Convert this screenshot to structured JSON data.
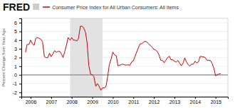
{
  "chart_data": {
    "type": "line",
    "title": "Consumer Price Index for All Urban Consumers: All Items",
    "ylabel": "Percent Change from Year Ago",
    "annotations": [
      {
        "text": "FRED"
      }
    ],
    "color": "#cc0000",
    "grid": true,
    "shade": {
      "start": 2007.92,
      "end": 2009.5
    },
    "reference_line": 0,
    "xlim": [
      2005.55,
      2015.6
    ],
    "ylim": [
      -2.5,
      6.5
    ],
    "xticks": [
      2006,
      2007,
      2008,
      2009,
      2010,
      2011,
      2012,
      2013,
      2014,
      2015
    ],
    "yticks": [
      -2,
      -1,
      0,
      1,
      2,
      3,
      4,
      5,
      6
    ],
    "x": [
      2005.75,
      2005.83,
      2005.92,
      2006.0,
      2006.08,
      2006.17,
      2006.25,
      2006.33,
      2006.42,
      2006.5,
      2006.58,
      2006.67,
      2006.75,
      2006.83,
      2006.92,
      2007.0,
      2007.08,
      2007.17,
      2007.25,
      2007.33,
      2007.42,
      2007.5,
      2007.58,
      2007.67,
      2007.75,
      2007.83,
      2007.92,
      2008.0,
      2008.08,
      2008.17,
      2008.25,
      2008.33,
      2008.42,
      2008.5,
      2008.58,
      2008.67,
      2008.75,
      2008.83,
      2008.92,
      2009.0,
      2009.08,
      2009.17,
      2009.25,
      2009.33,
      2009.42,
      2009.5,
      2009.58,
      2009.67,
      2009.75,
      2009.83,
      2009.92,
      2010.0,
      2010.08,
      2010.17,
      2010.25,
      2010.33,
      2010.42,
      2010.5,
      2010.58,
      2010.67,
      2010.75,
      2010.83,
      2010.92,
      2011.0,
      2011.08,
      2011.17,
      2011.25,
      2011.33,
      2011.42,
      2011.5,
      2011.58,
      2011.67,
      2011.75,
      2011.83,
      2011.92,
      2012.0,
      2012.08,
      2012.17,
      2012.25,
      2012.33,
      2012.42,
      2012.5,
      2012.58,
      2012.67,
      2012.75,
      2012.83,
      2012.92,
      2013.0,
      2013.08,
      2013.17,
      2013.25,
      2013.33,
      2013.42,
      2013.5,
      2013.58,
      2013.67,
      2013.75,
      2013.83,
      2013.92,
      2014.0,
      2014.08,
      2014.17,
      2014.25,
      2014.33,
      2014.42,
      2014.5,
      2014.58,
      2014.67,
      2014.75,
      2014.83,
      2014.92,
      2015.0,
      2015.08,
      2015.17,
      2015.25
    ],
    "values": [
      2.6,
      3.5,
      3.5,
      4.0,
      3.6,
      3.4,
      4.2,
      4.3,
      4.2,
      4.1,
      3.8,
      2.1,
      2.0,
      1.97,
      2.5,
      2.1,
      2.4,
      2.8,
      2.6,
      2.7,
      2.7,
      2.4,
      2.0,
      2.76,
      3.5,
      4.3,
      4.0,
      4.3,
      4.0,
      4.0,
      3.9,
      4.2,
      5.6,
      5.6,
      5.4,
      4.9,
      3.7,
      1.1,
      0.09,
      0.03,
      -0.2,
      -1.3,
      -1.0,
      -1.3,
      -1.75,
      -1.48,
      -1.5,
      -1.3,
      -0.18,
      1.18,
      1.84,
      2.63,
      2.31,
      2.2,
      1.05,
      1.1,
      1.2,
      1.24,
      1.15,
      1.14,
      1.17,
      1.1,
      1.5,
      1.63,
      2.11,
      2.68,
      3.16,
      3.57,
      3.6,
      3.77,
      3.87,
      3.77,
      3.53,
      3.39,
      3.16,
      2.93,
      2.87,
      2.65,
      2.3,
      1.7,
      1.66,
      1.41,
      1.69,
      1.99,
      2.16,
      1.76,
      1.74,
      1.59,
      1.47,
      1.67,
      1.36,
      1.05,
      1.36,
      1.96,
      1.52,
      1.18,
      1.01,
      1.24,
      1.24,
      1.58,
      1.37,
      1.51,
      2.13,
      2.1,
      2.07,
      1.99,
      1.7,
      1.66,
      1.66,
      1.32,
      0.76,
      -0.09,
      0.02,
      0.12,
      0.14
    ]
  }
}
